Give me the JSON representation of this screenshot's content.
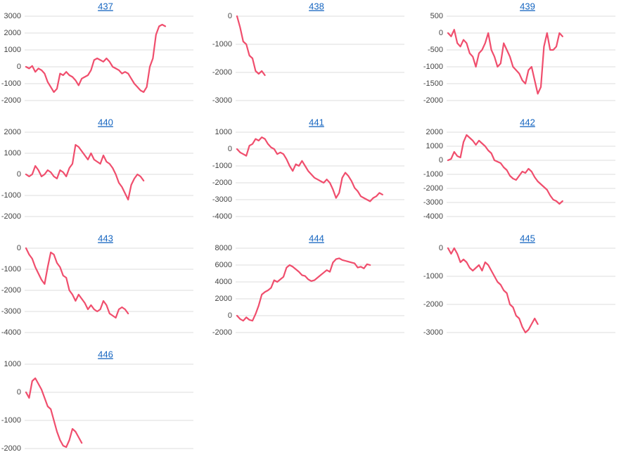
{
  "chart_data": [
    {
      "type": "line",
      "title": "437",
      "color": "#f04e6d",
      "grid": true,
      "ylim": [
        -2000,
        3000
      ],
      "yticks": [
        3000,
        2000,
        1000,
        0,
        -1000,
        -2000
      ],
      "values": [
        0,
        -100,
        50,
        -300,
        -100,
        -200,
        -400,
        -900,
        -1200,
        -1500,
        -1300,
        -400,
        -500,
        -300,
        -500,
        -600,
        -800,
        -1100,
        -700,
        -600,
        -500,
        -200,
        400,
        500,
        400,
        300,
        500,
        300,
        0,
        -100,
        -200,
        -400,
        -300,
        -400,
        -700,
        -1000,
        -1200,
        -1400,
        -1500,
        -1200,
        0,
        500,
        1900,
        2400,
        2500,
        2400
      ]
    },
    {
      "type": "line",
      "title": "438",
      "color": "#f04e6d",
      "grid": true,
      "ylim": [
        -3000,
        0
      ],
      "yticks": [
        0,
        -1000,
        -2000,
        -3000
      ],
      "values": [
        0,
        -400,
        -900,
        -1000,
        -1400,
        -1500,
        -1950,
        -2050,
        -1950,
        -2100
      ]
    },
    {
      "type": "line",
      "title": "439",
      "color": "#f04e6d",
      "grid": true,
      "ylim": [
        -2000,
        500
      ],
      "yticks": [
        500,
        0,
        -500,
        -1000,
        -1500,
        -2000
      ],
      "values": [
        0,
        -100,
        100,
        -300,
        -400,
        -200,
        -300,
        -600,
        -700,
        -1000,
        -600,
        -500,
        -300,
        0,
        -500,
        -700,
        -1000,
        -900,
        -300,
        -500,
        -700,
        -1000,
        -1100,
        -1200,
        -1400,
        -1500,
        -1100,
        -1000,
        -1400,
        -1800,
        -1600,
        -400,
        0,
        -500,
        -500,
        -400,
        0,
        -100
      ]
    },
    {
      "type": "line",
      "title": "440",
      "color": "#f04e6d",
      "grid": true,
      "ylim": [
        -2000,
        2000
      ],
      "yticks": [
        2000,
        1000,
        0,
        -1000,
        -2000
      ],
      "values": [
        0,
        -100,
        0,
        400,
        200,
        -100,
        0,
        200,
        100,
        -100,
        -200,
        200,
        100,
        -100,
        300,
        500,
        1400,
        1300,
        1100,
        900,
        700,
        1000,
        700,
        600,
        500,
        900,
        600,
        500,
        300,
        0,
        -400,
        -600,
        -900,
        -1200,
        -500,
        -200,
        0,
        -100,
        -300
      ]
    },
    {
      "type": "line",
      "title": "441",
      "color": "#f04e6d",
      "grid": true,
      "ylim": [
        -4000,
        1000
      ],
      "yticks": [
        1000,
        0,
        -1000,
        -2000,
        -3000,
        -4000
      ],
      "values": [
        0,
        -200,
        -300,
        -400,
        200,
        300,
        600,
        500,
        700,
        600,
        300,
        100,
        0,
        -300,
        -200,
        -300,
        -600,
        -1000,
        -1300,
        -900,
        -1000,
        -700,
        -1000,
        -1300,
        -1500,
        -1700,
        -1800,
        -1900,
        -2000,
        -1800,
        -2000,
        -2400,
        -2900,
        -2600,
        -1700,
        -1400,
        -1600,
        -1900,
        -2300,
        -2500,
        -2800,
        -2900,
        -3000,
        -3100,
        -2900,
        -2800,
        -2600,
        -2700
      ]
    },
    {
      "type": "line",
      "title": "442",
      "color": "#f04e6d",
      "grid": true,
      "ylim": [
        -4000,
        2000
      ],
      "yticks": [
        2000,
        1000,
        0,
        -1000,
        -2000,
        -3000,
        -4000
      ],
      "values": [
        0,
        100,
        600,
        300,
        200,
        1300,
        1800,
        1600,
        1400,
        1100,
        1400,
        1200,
        1000,
        700,
        500,
        0,
        -100,
        -200,
        -500,
        -700,
        -1100,
        -1300,
        -1400,
        -1100,
        -800,
        -900,
        -600,
        -800,
        -1200,
        -1500,
        -1700,
        -1900,
        -2100,
        -2500,
        -2800,
        -2900,
        -3100,
        -2900
      ]
    },
    {
      "type": "line",
      "title": "443",
      "color": "#f04e6d",
      "grid": true,
      "ylim": [
        -4000,
        0
      ],
      "yticks": [
        0,
        -1000,
        -2000,
        -3000,
        -4000
      ],
      "values": [
        0,
        -300,
        -500,
        -900,
        -1200,
        -1500,
        -1700,
        -900,
        -200,
        -300,
        -700,
        -900,
        -1300,
        -1400,
        -2000,
        -2200,
        -2500,
        -2200,
        -2400,
        -2600,
        -2900,
        -2700,
        -2900,
        -3000,
        -2900,
        -2500,
        -2700,
        -3100,
        -3200,
        -3300,
        -2900,
        -2800,
        -2900,
        -3100
      ]
    },
    {
      "type": "line",
      "title": "444",
      "color": "#f04e6d",
      "grid": true,
      "ylim": [
        -2000,
        8000
      ],
      "yticks": [
        8000,
        6000,
        4000,
        2000,
        0,
        -2000
      ],
      "values": [
        0,
        -400,
        -600,
        -200,
        -500,
        -600,
        200,
        1200,
        2500,
        2800,
        3000,
        3300,
        4200,
        4000,
        4300,
        4600,
        5700,
        6000,
        5800,
        5500,
        5200,
        4800,
        4700,
        4300,
        4100,
        4200,
        4500,
        4800,
        5100,
        5400,
        5200,
        6300,
        6700,
        6800,
        6600,
        6500,
        6400,
        6300,
        6200,
        5700,
        5800,
        5600,
        6100,
        6000
      ]
    },
    {
      "type": "line",
      "title": "445",
      "color": "#f04e6d",
      "grid": true,
      "ylim": [
        -3000,
        0
      ],
      "yticks": [
        0,
        -1000,
        -2000,
        -3000
      ],
      "values": [
        0,
        -200,
        0,
        -200,
        -500,
        -400,
        -500,
        -700,
        -800,
        -700,
        -600,
        -800,
        -500,
        -600,
        -800,
        -1000,
        -1200,
        -1300,
        -1500,
        -1600,
        -2000,
        -2100,
        -2400,
        -2500,
        -2800,
        -3000,
        -2900,
        -2700,
        -2500,
        -2700
      ]
    },
    {
      "type": "line",
      "title": "446",
      "color": "#f04e6d",
      "grid": true,
      "ylim": [
        -2000,
        1000
      ],
      "yticks": [
        1000,
        0,
        -1000,
        -2000
      ],
      "values": [
        0,
        -200,
        400,
        500,
        300,
        100,
        -200,
        -500,
        -600,
        -1000,
        -1400,
        -1700,
        -1900,
        -1950,
        -1700,
        -1300,
        -1400,
        -1600,
        -1800
      ]
    }
  ]
}
